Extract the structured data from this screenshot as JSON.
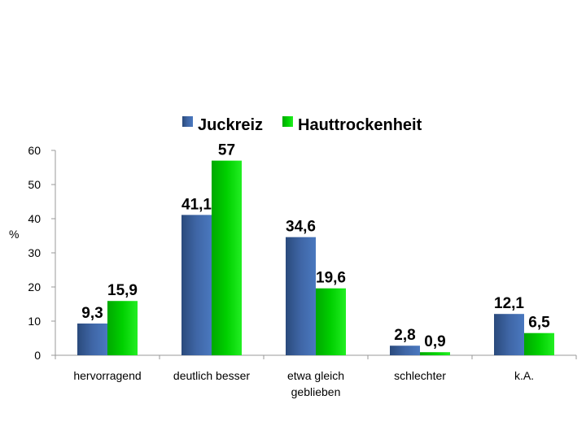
{
  "chart_data": {
    "type": "bar",
    "categories": [
      "hervorragend",
      "deutlich besser",
      "etwa gleich geblieben",
      "schlechter",
      "k.A."
    ],
    "category_lines": [
      [
        "hervorragend"
      ],
      [
        "deutlich besser"
      ],
      [
        "etwa gleich",
        "geblieben"
      ],
      [
        "schlechter"
      ],
      [
        "k.A."
      ]
    ],
    "series": [
      {
        "name": "Juckreiz",
        "values": [
          9.3,
          41.1,
          34.6,
          2.8,
          12.1
        ],
        "labels": [
          "9,3",
          "41,1",
          "34,6",
          "2,8",
          "12,1"
        ],
        "color": "#3d62a0"
      },
      {
        "name": "Hauttrockenheit",
        "values": [
          15.9,
          57,
          19.6,
          0.9,
          6.5
        ],
        "labels": [
          "15,9",
          "57",
          "19,6",
          "0,9",
          "6,5"
        ],
        "color": "#00cc00"
      }
    ],
    "ylabel": "%",
    "ylim": [
      0,
      60
    ],
    "yticks": [
      0,
      10,
      20,
      30,
      40,
      50,
      60
    ],
    "legend_position": "top",
    "grid": false
  }
}
